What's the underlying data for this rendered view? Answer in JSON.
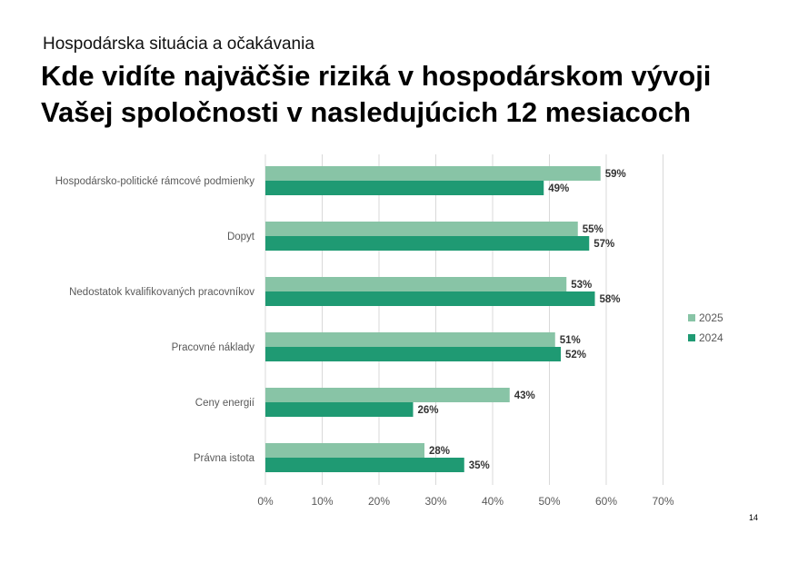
{
  "header": {
    "subtitle": "Hospodárska situácia a očakávania",
    "title_line1": "Kde vidíte najväčšie riziká v hospodárskom vývoji",
    "title_line2": "Vašej spoločnosti v nasledujúcich 12 mesiacoch"
  },
  "page_number": "14",
  "colors": {
    "series_2025": "#88c4a6",
    "series_2024": "#1f9a73",
    "grid": "#d9d9d9",
    "axis_text": "#595959"
  },
  "chart_data": {
    "type": "bar",
    "orientation": "horizontal",
    "title": "Kde vidíte najväčšie riziká v hospodárskom vývoji Vašej spoločnosti v nasledujúcich 12 mesiacoch",
    "categories": [
      "Hospodársko-politické rámcové podmienky",
      "Dopyt",
      "Nedostatok kvalifikovaných pracovníkov",
      "Pracovné náklady",
      "Ceny energií",
      "Právna istota"
    ],
    "series": [
      {
        "name": "2025",
        "values": [
          59,
          55,
          53,
          51,
          43,
          28
        ]
      },
      {
        "name": "2024",
        "values": [
          49,
          57,
          58,
          52,
          26,
          35
        ]
      }
    ],
    "value_suffix": "%",
    "xlim": [
      0,
      70
    ],
    "xticks": [
      0,
      10,
      20,
      30,
      40,
      50,
      60,
      70
    ],
    "xtick_labels": [
      "0%",
      "10%",
      "20%",
      "30%",
      "40%",
      "50%",
      "60%",
      "70%"
    ],
    "grid": true,
    "legend_position": "right"
  }
}
